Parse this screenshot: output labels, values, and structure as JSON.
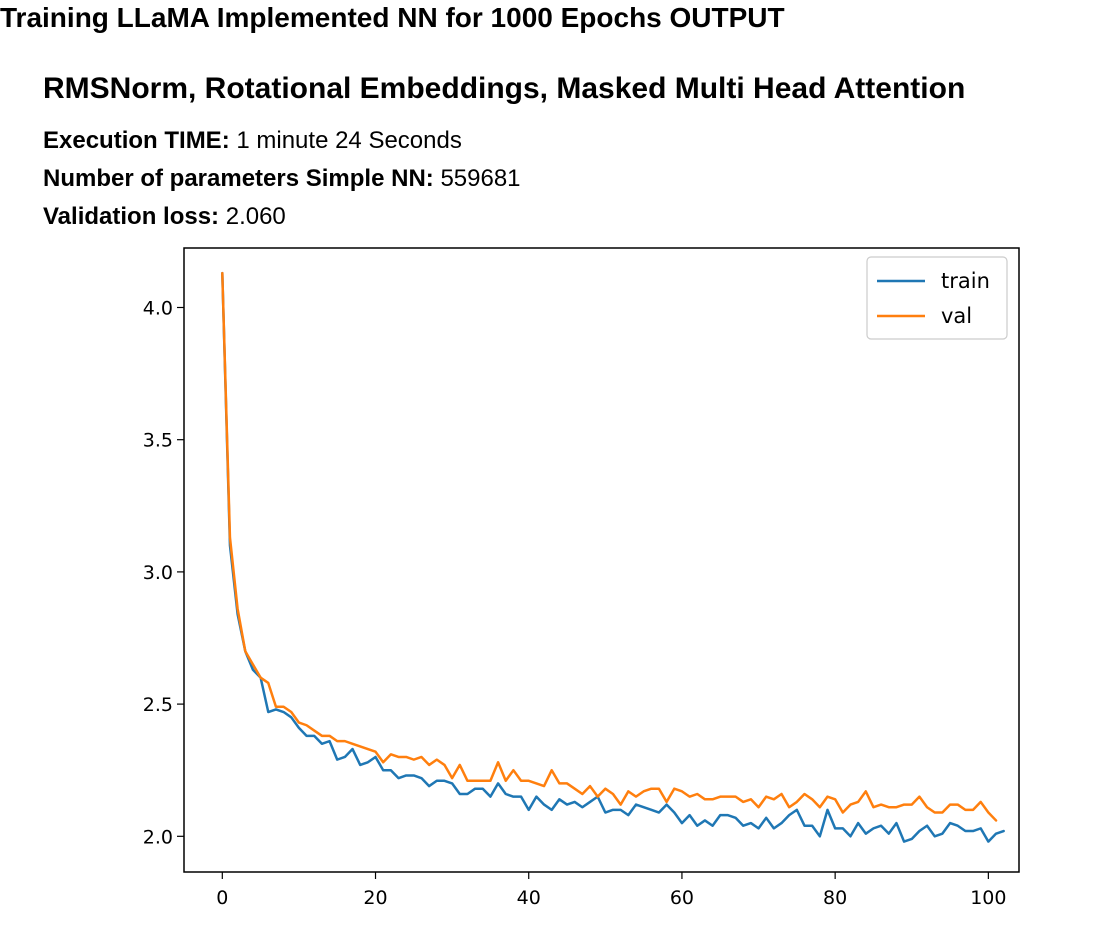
{
  "header": {
    "title": "Training LLaMA Implemented NN for 1000 Epochs OUTPUT",
    "subtitle": "RMSNorm, Rotational Embeddings, Masked Multi Head Attention"
  },
  "info": {
    "execution_label": "Execution TIME:",
    "execution_value": "1 minute 24 Seconds",
    "params_label": "Number of parameters Simple NN:",
    "params_value": "559681",
    "valloss_label": "Validation loss:",
    "valloss_value": "2.060"
  },
  "chart_data": {
    "type": "line",
    "title": "",
    "xlabel": "",
    "ylabel": "",
    "xlim": [
      -5,
      104
    ],
    "ylim": [
      1.865,
      4.225
    ],
    "x_ticks": [
      0,
      20,
      40,
      60,
      80,
      100
    ],
    "y_ticks": [
      2.0,
      2.5,
      3.0,
      3.5,
      4.0
    ],
    "x_tick_labels": [
      "0",
      "20",
      "40",
      "60",
      "80",
      "100"
    ],
    "y_tick_labels": [
      "2.0",
      "2.5",
      "3.0",
      "3.5",
      "4.0"
    ],
    "legend_position": "top-right",
    "series": [
      {
        "name": "train",
        "color": "#1f77b4",
        "values": [
          4.13,
          3.1,
          2.84,
          2.7,
          2.63,
          2.6,
          2.47,
          2.48,
          2.47,
          2.45,
          2.41,
          2.38,
          2.38,
          2.35,
          2.36,
          2.29,
          2.3,
          2.33,
          2.27,
          2.28,
          2.3,
          2.25,
          2.25,
          2.22,
          2.23,
          2.23,
          2.22,
          2.19,
          2.21,
          2.21,
          2.2,
          2.16,
          2.16,
          2.18,
          2.18,
          2.15,
          2.2,
          2.16,
          2.15,
          2.15,
          2.1,
          2.15,
          2.12,
          2.1,
          2.14,
          2.12,
          2.13,
          2.11,
          2.13,
          2.15,
          2.09,
          2.1,
          2.1,
          2.08,
          2.12,
          2.11,
          2.1,
          2.09,
          2.12,
          2.09,
          2.05,
          2.08,
          2.04,
          2.06,
          2.04,
          2.08,
          2.08,
          2.07,
          2.04,
          2.05,
          2.03,
          2.07,
          2.03,
          2.05,
          2.08,
          2.1,
          2.04,
          2.04,
          2.0,
          2.1,
          2.03,
          2.03,
          2.0,
          2.05,
          2.01,
          2.03,
          2.04,
          2.01,
          2.05,
          1.98,
          1.99,
          2.02,
          2.04,
          2.0,
          2.01,
          2.05,
          2.04,
          2.02,
          2.02,
          2.03,
          1.98,
          2.01,
          2.02
        ]
      },
      {
        "name": "val",
        "color": "#ff7f0e",
        "values": [
          4.13,
          3.13,
          2.86,
          2.7,
          2.65,
          2.6,
          2.58,
          2.49,
          2.49,
          2.47,
          2.43,
          2.42,
          2.4,
          2.38,
          2.38,
          2.36,
          2.36,
          2.35,
          2.34,
          2.33,
          2.32,
          2.28,
          2.31,
          2.3,
          2.3,
          2.29,
          2.3,
          2.27,
          2.29,
          2.27,
          2.22,
          2.27,
          2.21,
          2.21,
          2.21,
          2.21,
          2.28,
          2.21,
          2.25,
          2.21,
          2.21,
          2.2,
          2.19,
          2.25,
          2.2,
          2.2,
          2.18,
          2.16,
          2.19,
          2.15,
          2.18,
          2.16,
          2.12,
          2.17,
          2.15,
          2.17,
          2.18,
          2.18,
          2.13,
          2.18,
          2.17,
          2.15,
          2.16,
          2.14,
          2.14,
          2.15,
          2.15,
          2.15,
          2.13,
          2.14,
          2.11,
          2.15,
          2.14,
          2.16,
          2.11,
          2.13,
          2.16,
          2.14,
          2.11,
          2.15,
          2.14,
          2.09,
          2.12,
          2.13,
          2.17,
          2.11,
          2.12,
          2.11,
          2.11,
          2.12,
          2.12,
          2.15,
          2.11,
          2.09,
          2.09,
          2.12,
          2.12,
          2.1,
          2.1,
          2.13,
          2.09,
          2.06
        ]
      }
    ]
  }
}
